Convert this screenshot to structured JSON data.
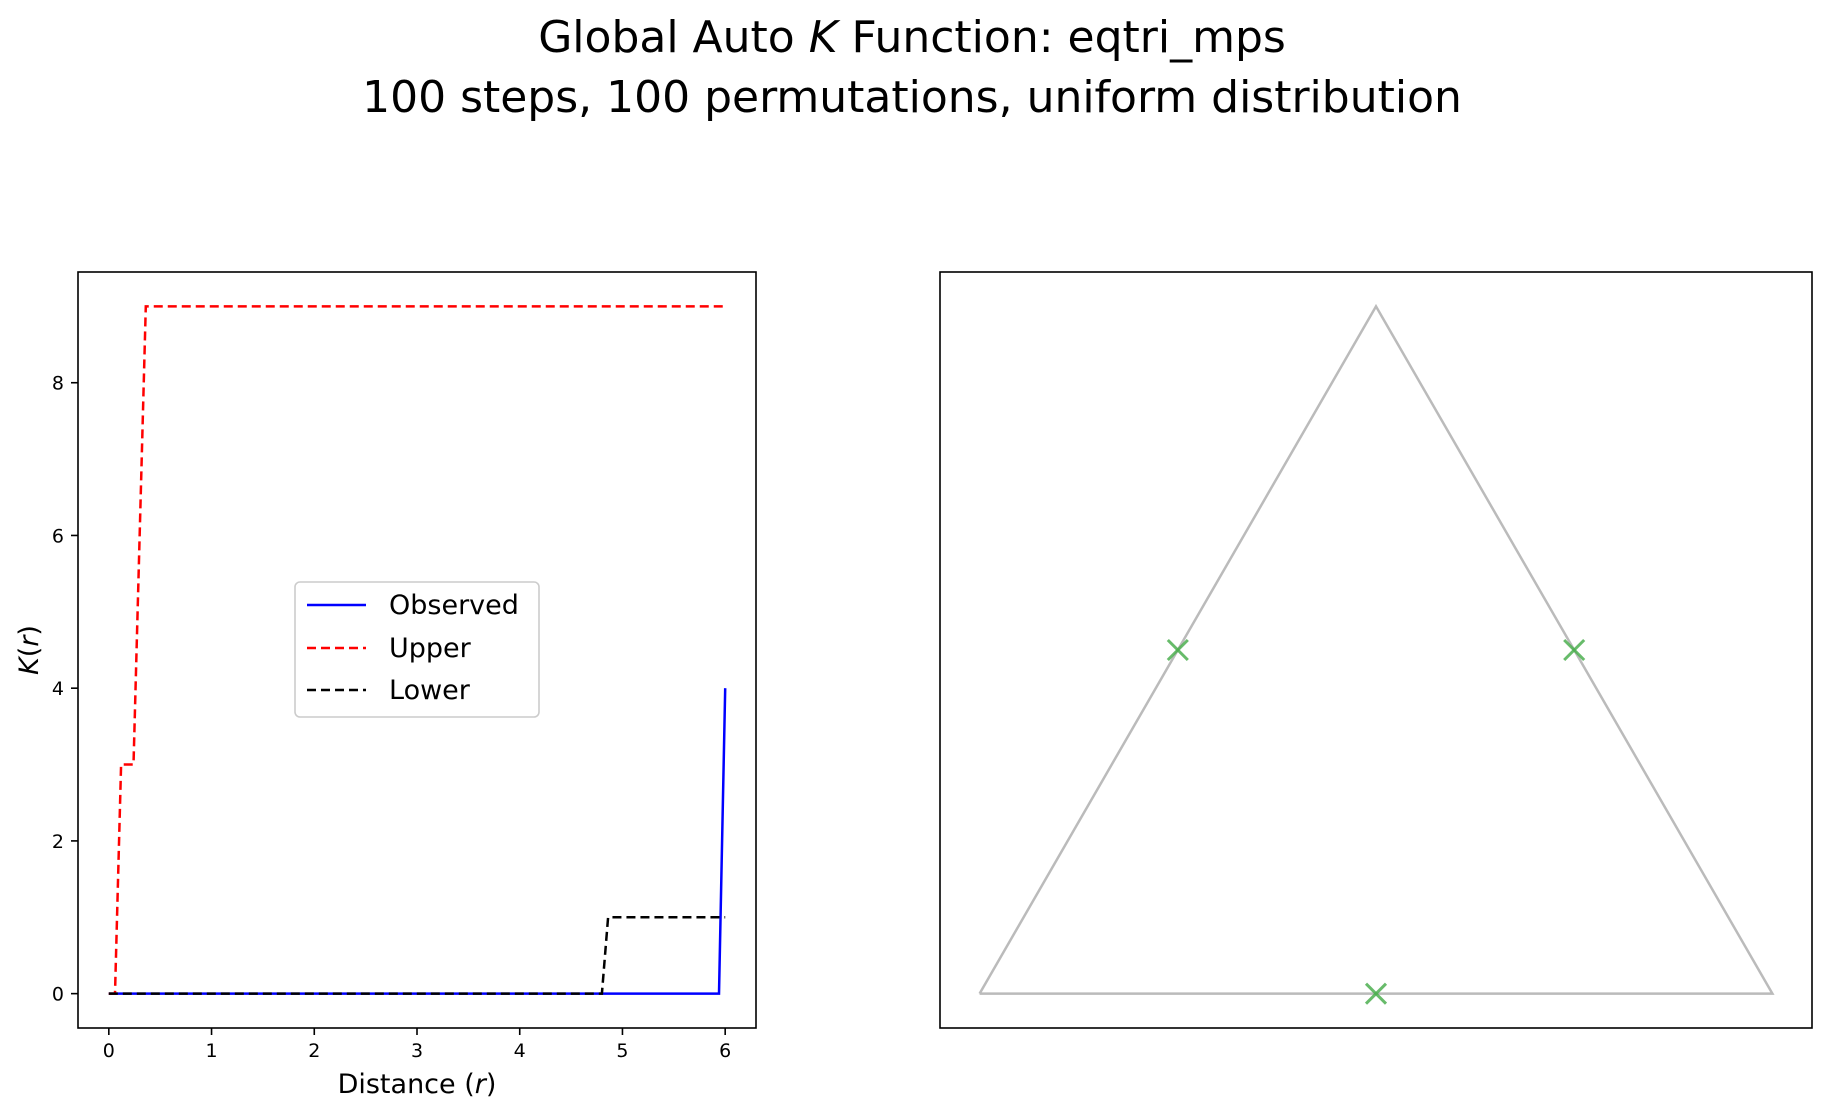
{
  "figure": {
    "title_prefix": "Global Auto ",
    "title_k": "K",
    "title_suffix": " Function: eqtri_mps",
    "subtitle": "100 steps, 100 permutations, uniform distribution"
  },
  "chart_data": [
    {
      "type": "line",
      "xlabel_prefix": "Distance (",
      "xlabel_var": "r",
      "xlabel_suffix": ")",
      "ylabel_k": "K",
      "ylabel_paren_open": "(",
      "ylabel_var": "r",
      "ylabel_paren_close": ")",
      "xlim": [
        -0.3,
        6.3
      ],
      "ylim": [
        -0.45,
        9.45
      ],
      "xticks": [
        0,
        1,
        2,
        3,
        4,
        5,
        6
      ],
      "yticks": [
        0,
        2,
        4,
        6,
        8
      ],
      "grid": false,
      "legend_position": "center",
      "series": [
        {
          "name": "Observed",
          "color": "#0000ff",
          "dash": "solid",
          "x": [
            0,
            5.94,
            6.0
          ],
          "y": [
            0,
            0,
            4
          ]
        },
        {
          "name": "Upper",
          "color": "#ff0000",
          "dash": "dashed",
          "x": [
            0,
            0.06,
            0.12,
            0.24,
            0.36,
            6.0
          ],
          "y": [
            0,
            0,
            3,
            3,
            9,
            9
          ]
        },
        {
          "name": "Lower",
          "color": "#000000",
          "dash": "dashed",
          "x": [
            0,
            4.8,
            4.86,
            6.0
          ],
          "y": [
            0,
            0,
            1,
            1
          ]
        }
      ]
    },
    {
      "type": "scatter",
      "xlim": [
        -0.5,
        10.5
      ],
      "ylim": [
        -0.45,
        9.45
      ],
      "axes_visible": false,
      "outline": {
        "color": "#bbbbbb",
        "x": [
          0,
          5,
          10,
          0
        ],
        "y": [
          0,
          9,
          0,
          0
        ]
      },
      "points": {
        "marker": "x",
        "color": "#4caf50",
        "x": [
          2.5,
          7.5,
          5
        ],
        "y": [
          4.5,
          4.5,
          0
        ]
      }
    }
  ]
}
